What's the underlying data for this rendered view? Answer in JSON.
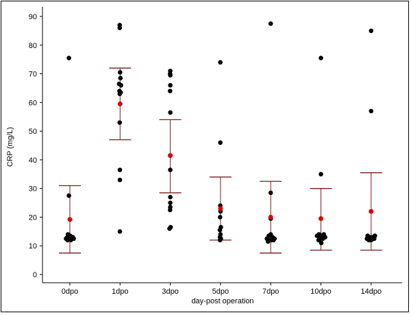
{
  "chart_data": {
    "type": "scatter",
    "title": "",
    "xlabel": "day-post operation",
    "ylabel": "CRP (mg/L)",
    "ylim": [
      -2,
      92
    ],
    "yticks": [
      0,
      10,
      20,
      30,
      40,
      50,
      60,
      70,
      80,
      90
    ],
    "grid": false,
    "legend": "none",
    "categories": [
      "0dpo",
      "1dpo",
      "3dpo",
      "5dpo",
      "7dpo",
      "10dpo",
      "14dpo"
    ],
    "colors": {
      "points": "#000000",
      "mean": "#dd0000",
      "error_bar": "#7a1a1a"
    },
    "groups": [
      {
        "category": "0dpo",
        "mean": 19.2,
        "upper": 31.0,
        "lower": 7.5,
        "points": [
          {
            "y": 75.5,
            "dx": -0.05
          },
          {
            "y": 27.5,
            "dx": -0.05
          },
          {
            "y": 14.0,
            "dx": -0.1
          },
          {
            "y": 13.5,
            "dx": 0.02
          },
          {
            "y": 13.0,
            "dx": 0.1
          },
          {
            "y": 12.5,
            "dx": -0.2
          },
          {
            "y": 12.5,
            "dx": 0.2
          },
          {
            "y": 12.5,
            "dx": -0.02
          },
          {
            "y": 12.0,
            "dx": 0.05
          },
          {
            "y": 12.0,
            "dx": -0.12
          },
          {
            "y": 13.0,
            "dx": 0.15
          },
          {
            "y": 12.8,
            "dx": -0.16
          }
        ]
      },
      {
        "category": "1dpo",
        "mean": 59.5,
        "upper": 72.0,
        "lower": 47.0,
        "points": [
          {
            "y": 87.0,
            "dx": -0.02
          },
          {
            "y": 86.0,
            "dx": -0.02
          },
          {
            "y": 70.5,
            "dx": 0.0
          },
          {
            "y": 68.5,
            "dx": 0.02
          },
          {
            "y": 66.5,
            "dx": -0.05
          },
          {
            "y": 66.0,
            "dx": 0.05
          },
          {
            "y": 64.0,
            "dx": -0.03
          },
          {
            "y": 63.5,
            "dx": 0.03
          },
          {
            "y": 63.0,
            "dx": -0.02
          },
          {
            "y": 53.0,
            "dx": -0.02
          },
          {
            "y": 36.5,
            "dx": -0.01
          },
          {
            "y": 33.0,
            "dx": -0.01
          },
          {
            "y": 15.0,
            "dx": -0.01
          }
        ]
      },
      {
        "category": "3dpo",
        "mean": 41.5,
        "upper": 54.0,
        "lower": 28.5,
        "points": [
          {
            "y": 71.0,
            "dx": 0.0
          },
          {
            "y": 70.0,
            "dx": -0.01
          },
          {
            "y": 69.5,
            "dx": 0.0
          },
          {
            "y": 66.0,
            "dx": 0.0
          },
          {
            "y": 64.0,
            "dx": -0.01
          },
          {
            "y": 56.5,
            "dx": 0.0
          },
          {
            "y": 41.5,
            "dx": 0.0
          },
          {
            "y": 36.5,
            "dx": 0.0
          },
          {
            "y": 27.0,
            "dx": 0.0
          },
          {
            "y": 25.0,
            "dx": 0.0
          },
          {
            "y": 23.5,
            "dx": 0.0
          },
          {
            "y": 22.5,
            "dx": -0.01
          },
          {
            "y": 16.5,
            "dx": 0.02
          },
          {
            "y": 16.0,
            "dx": -0.04
          }
        ]
      },
      {
        "category": "5dpo",
        "mean": 23.0,
        "upper": 34.0,
        "lower": 12.0,
        "points": [
          {
            "y": 74.0,
            "dx": -0.01
          },
          {
            "y": 46.0,
            "dx": -0.01
          },
          {
            "y": 24.0,
            "dx": -0.01
          },
          {
            "y": 22.0,
            "dx": 0.0
          },
          {
            "y": 20.0,
            "dx": -0.02
          },
          {
            "y": 16.5,
            "dx": 0.02
          },
          {
            "y": 15.5,
            "dx": -0.03
          },
          {
            "y": 14.0,
            "dx": 0.0
          },
          {
            "y": 13.0,
            "dx": -0.03
          },
          {
            "y": 12.5,
            "dx": 0.02
          },
          {
            "y": 12.0,
            "dx": -0.02
          }
        ]
      },
      {
        "category": "7dpo",
        "mean": 20.0,
        "upper": 32.5,
        "lower": 7.5,
        "points": [
          {
            "y": 87.5,
            "dx": 0.0
          },
          {
            "y": 28.5,
            "dx": 0.0
          },
          {
            "y": 19.5,
            "dx": 0.0
          },
          {
            "y": 14.0,
            "dx": 0.0
          },
          {
            "y": 13.5,
            "dx": -0.1
          },
          {
            "y": 13.0,
            "dx": 0.1
          },
          {
            "y": 12.5,
            "dx": -0.2
          },
          {
            "y": 12.5,
            "dx": 0.2
          },
          {
            "y": 12.0,
            "dx": -0.05
          },
          {
            "y": 12.0,
            "dx": 0.05
          },
          {
            "y": 11.5,
            "dx": -0.14
          },
          {
            "y": 12.0,
            "dx": 0.14
          }
        ]
      },
      {
        "category": "10dpo",
        "mean": 19.5,
        "upper": 30.0,
        "lower": 8.5,
        "points": [
          {
            "y": 75.5,
            "dx": 0.0
          },
          {
            "y": 35.0,
            "dx": 0.0
          },
          {
            "y": 14.0,
            "dx": -0.1
          },
          {
            "y": 14.0,
            "dx": 0.15
          },
          {
            "y": 13.5,
            "dx": 0.05
          },
          {
            "y": 13.5,
            "dx": -0.2
          },
          {
            "y": 13.0,
            "dx": 0.22
          },
          {
            "y": 13.0,
            "dx": -0.02
          },
          {
            "y": 12.5,
            "dx": 0.1
          },
          {
            "y": 12.0,
            "dx": -0.12
          },
          {
            "y": 11.0,
            "dx": 0.02
          },
          {
            "y": 12.5,
            "dx": -0.06
          }
        ]
      },
      {
        "category": "14dpo",
        "mean": 22.0,
        "upper": 35.5,
        "lower": 8.5,
        "points": [
          {
            "y": 85.0,
            "dx": 0.0
          },
          {
            "y": 57.0,
            "dx": 0.0
          },
          {
            "y": 13.5,
            "dx": -0.18
          },
          {
            "y": 13.5,
            "dx": 0.2
          },
          {
            "y": 13.0,
            "dx": 0.05
          },
          {
            "y": 13.0,
            "dx": -0.08
          },
          {
            "y": 12.5,
            "dx": 0.12
          },
          {
            "y": 12.5,
            "dx": -0.22
          },
          {
            "y": 12.0,
            "dx": 0.0
          },
          {
            "y": 12.0,
            "dx": -0.12
          },
          {
            "y": 12.5,
            "dx": 0.16
          }
        ]
      }
    ]
  }
}
